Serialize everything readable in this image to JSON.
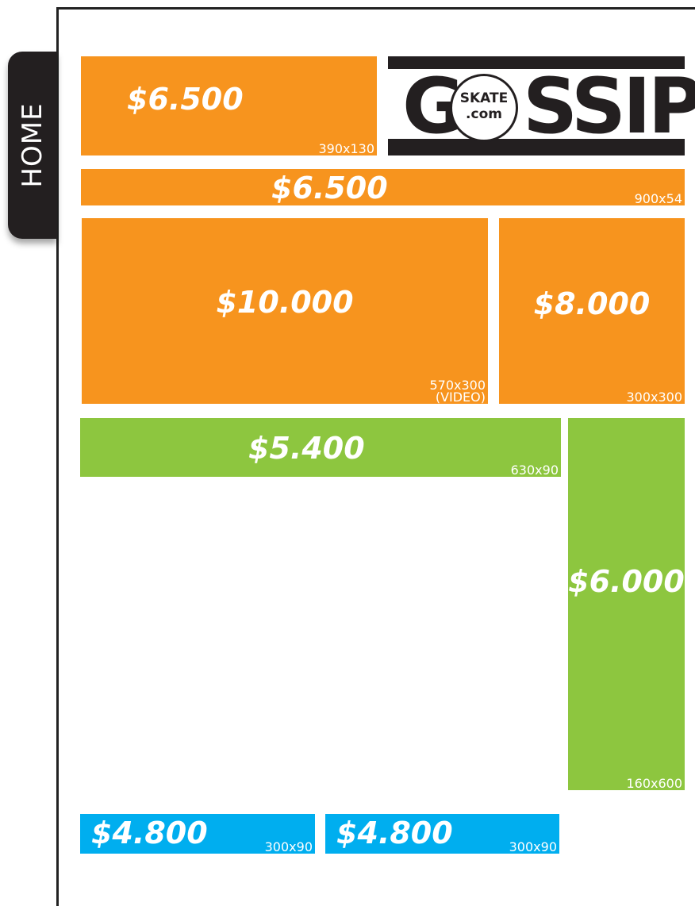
{
  "tab": "HOME",
  "logo": {
    "left": "G",
    "badge_top": "SKATE",
    "badge_bottom": ".com",
    "right": "SSIP"
  },
  "slots": [
    {
      "price": "$6.500",
      "size": "390x130"
    },
    {
      "price": "$6.500",
      "size": "900x54"
    },
    {
      "price": "$10.000",
      "size": "570x300",
      "note": "(VIDEO)"
    },
    {
      "price": "$8.000",
      "size": "300x300"
    },
    {
      "price": "$5.400",
      "size": "630x90"
    },
    {
      "price": "$6.000",
      "size": "160x600"
    },
    {
      "price": "$4.800",
      "size": "300x90"
    },
    {
      "price": "$4.800",
      "size": "300x90"
    }
  ]
}
